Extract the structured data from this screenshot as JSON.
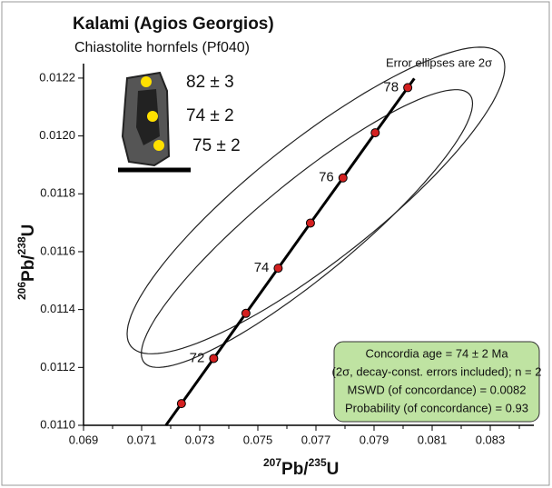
{
  "chart_data": {
    "type": "concordia",
    "title": "Kalami (Agios Georgios)",
    "subtitle": "Chiastolite hornfels (Pf040)",
    "annotation": "Error ellipses are 2σ",
    "x_label": [
      "207",
      "Pb/",
      "235",
      "U"
    ],
    "y_label": [
      "206",
      "Pb/",
      "238",
      "U"
    ],
    "xlim": [
      0.069,
      0.0845
    ],
    "ylim": [
      0.011,
      0.01225
    ],
    "xticks": [
      0.069,
      0.071,
      0.073,
      0.075,
      0.077,
      0.079,
      0.081,
      0.083
    ],
    "xminor_ticks": [
      0.07,
      0.072,
      0.074,
      0.076,
      0.078,
      0.08,
      0.082,
      0.084
    ],
    "yticks": [
      {
        "value": 0.011,
        "label": "0.0110"
      },
      0.0112,
      0.0114,
      0.0116,
      0.0118,
      {
        "value": 0.012,
        "label": "0.0120"
      },
      0.0122
    ],
    "concordia": {
      "color": "#d42020",
      "x": [
        0.07237,
        0.07348,
        0.07459,
        0.0757,
        0.07681,
        0.07793,
        0.07904,
        0.08016
      ],
      "y": [
        0.011075,
        0.011231,
        0.011387,
        0.011543,
        0.011699,
        0.011855,
        0.012011,
        0.012167
      ],
      "point_labels": [
        null,
        72,
        null,
        74,
        null,
        76,
        null,
        78
      ]
    },
    "ellipses": [
      {
        "x": 0.077,
        "y": 0.011777,
        "x_err": 0.0065,
        "y_err": 0.00053,
        "rho": 0.87
      },
      {
        "x": 0.07669,
        "y": 0.01168,
        "x_err": 0.0057,
        "y_err": 0.00048,
        "rho": 0.9
      }
    ],
    "inset_ages": [
      "82 ± 3",
      "74 ± 2",
      "75 ± 2"
    ],
    "result_box": [
      "Concordia age = 74 ± 2 Ma",
      "(2σ, decay-const. errors included); n = 2",
      "MSWD (of concordance) = 0.0082",
      "Probability (of concordance) = 0.93"
    ]
  }
}
